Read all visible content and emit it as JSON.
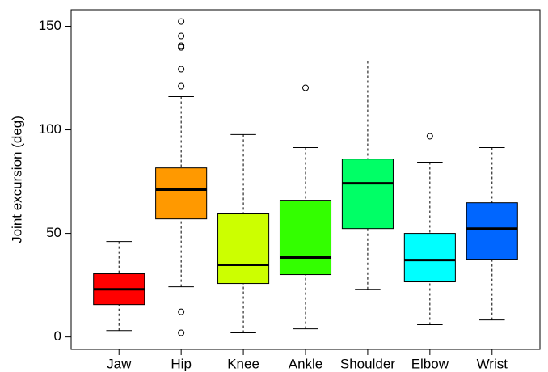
{
  "chart_data": {
    "type": "box",
    "y_label": "Joint excursion (deg)",
    "categories": [
      "Jaw",
      "Hip",
      "Knee",
      "Ankle",
      "Shoulder",
      "Elbow",
      "Wrist"
    ],
    "boxes": [
      {
        "color": "#ff0000",
        "min": 3.1,
        "q1": 15.6,
        "median": 23,
        "q3": 30.5,
        "max": 46.1,
        "outliers": []
      },
      {
        "color": "#ff9900",
        "min": 24.2,
        "q1": 57,
        "median": 71.1,
        "q3": 81.6,
        "max": 116,
        "outliers": [
          152.3,
          145.3,
          140.6,
          139.8,
          129.3,
          121.1,
          12.1,
          2
        ]
      },
      {
        "color": "#ccff00",
        "min": 2,
        "q1": 25.8,
        "median": 34.8,
        "q3": 59.4,
        "max": 97.7,
        "outliers": []
      },
      {
        "color": "#33ff00",
        "min": 3.9,
        "q1": 30.1,
        "median": 38.3,
        "q3": 66,
        "max": 91.4,
        "outliers": [
          120.3
        ]
      },
      {
        "color": "#00ff66",
        "min": 23,
        "q1": 52.3,
        "median": 74.2,
        "q3": 85.9,
        "max": 133.2,
        "outliers": []
      },
      {
        "color": "#00ffff",
        "min": 5.9,
        "q1": 26.6,
        "median": 37.1,
        "q3": 50,
        "max": 84.4,
        "outliers": [
          96.9
        ]
      },
      {
        "color": "#0066ff",
        "min": 8.2,
        "q1": 37.5,
        "median": 52.3,
        "q3": 64.8,
        "max": 91.4,
        "outliers": []
      }
    ],
    "ylim": [
      -6,
      158
    ],
    "yticks": [
      0,
      50,
      100,
      150
    ]
  }
}
